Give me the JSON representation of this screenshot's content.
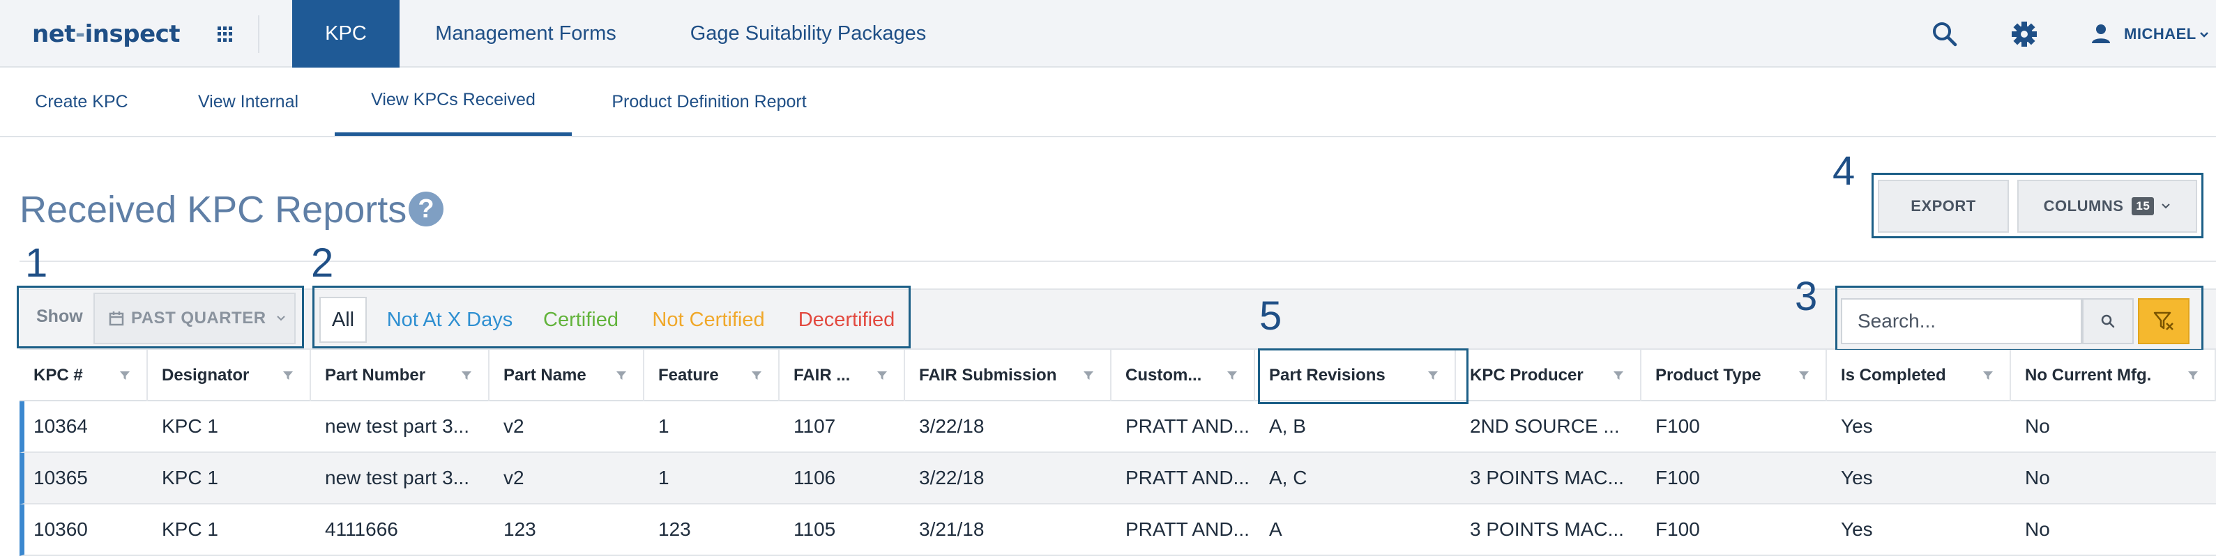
{
  "brand": {
    "logo_main": "net",
    "logo_sep": "-",
    "logo_rest": "inspect"
  },
  "topnav": {
    "tabs": [
      {
        "label": "KPC",
        "active": true
      },
      {
        "label": "Management Forms",
        "active": false
      },
      {
        "label": "Gage Suitability Packages",
        "active": false
      }
    ],
    "user_name": "MICHAEL"
  },
  "subnav": {
    "tabs": [
      {
        "label": "Create KPC",
        "active": false
      },
      {
        "label": "View Internal",
        "active": false
      },
      {
        "label": "View KPCs Received",
        "active": true
      },
      {
        "label": "Product Definition Report",
        "active": false
      }
    ]
  },
  "page": {
    "title": "Received KPC Reports",
    "help_glyph": "?"
  },
  "callouts": [
    "1",
    "2",
    "3",
    "4",
    "5"
  ],
  "toolbar": {
    "export_label": "EXPORT",
    "columns_label": "COLUMNS",
    "columns_count": "15"
  },
  "filters": {
    "show_label": "Show",
    "period": "PAST QUARTER",
    "status_pills": [
      "All",
      "Not At X Days",
      "Certified",
      "Not Certified",
      "Decertified"
    ],
    "active_pill": "All",
    "search_placeholder": "Search..."
  },
  "colors": {
    "primary": "#1f5a96",
    "not_at_x_days": "#2e8fd1",
    "certified": "#62b33b",
    "not_certified": "#f0a82a",
    "decertified": "#e2493f",
    "filter_active": "#f5b82e"
  },
  "table": {
    "columns": [
      "KPC #",
      "Designator",
      "Part Number",
      "Part Name",
      "Feature",
      "FAIR ...",
      "FAIR Submission",
      "Custom...",
      "Part Revisions",
      "KPC Producer",
      "Product Type",
      "Is Completed",
      "No Current Mfg."
    ],
    "rows": [
      [
        "10364",
        "KPC 1",
        "new test part 3...",
        "v2",
        "1",
        "1107",
        "3/22/18",
        "PRATT AND...",
        "A, B",
        "2ND SOURCE ...",
        "F100",
        "Yes",
        "No"
      ],
      [
        "10365",
        "KPC 1",
        "new test part 3...",
        "v2",
        "1",
        "1106",
        "3/22/18",
        "PRATT AND...",
        "A, C",
        "3 POINTS MAC...",
        "F100",
        "Yes",
        "No"
      ],
      [
        "10360",
        "KPC 1",
        "4111666",
        "123",
        "123",
        "1105",
        "3/21/18",
        "PRATT AND...",
        "A",
        "3 POINTS MAC...",
        "F100",
        "Yes",
        "No"
      ]
    ]
  }
}
